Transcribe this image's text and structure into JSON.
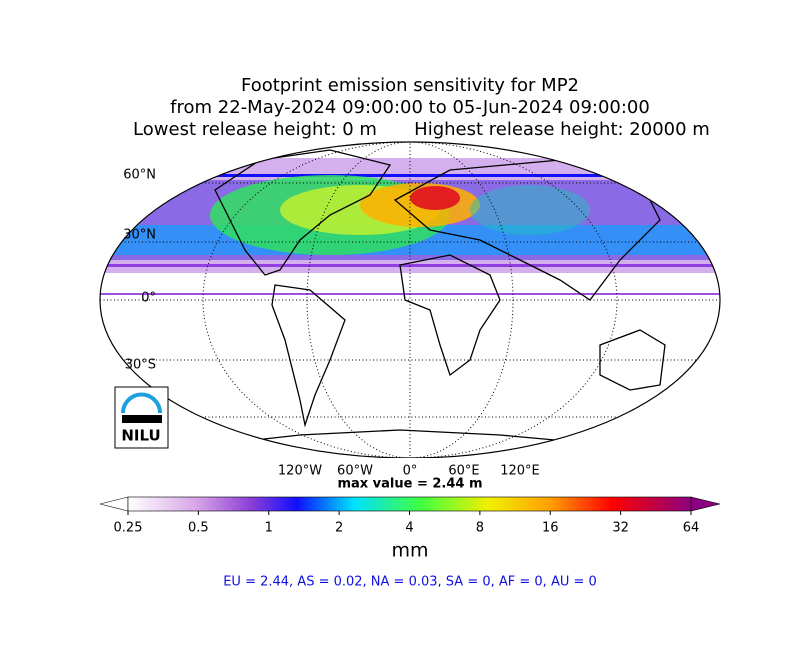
{
  "title": {
    "line1": "Footprint emission sensitivity for MP2",
    "line2": "from 22-May-2024 09:00:00 to 05-Jun-2024 09:00:00",
    "lowest": "Lowest release height: 0 m",
    "highest": "Highest release height: 20000 m"
  },
  "map": {
    "lat_labels": [
      "60°N",
      "30°N",
      "0°",
      "30°S"
    ],
    "lon_labels": [
      "120°W",
      "60°W",
      "0°",
      "60°E",
      "120°E"
    ],
    "max_value": "max value = 2.44 m",
    "logo": "NILU"
  },
  "colorbar": {
    "lim": [
      0.25,
      64
    ],
    "ticks": [
      0.25,
      0.5,
      1,
      2,
      4,
      8,
      16,
      32,
      64
    ],
    "label": "mm",
    "log": true
  },
  "footer": "EU = 2.44,  AS = 0.02,  NA = 0.03,  SA = 0,  AF = 0,  AU = 0"
}
